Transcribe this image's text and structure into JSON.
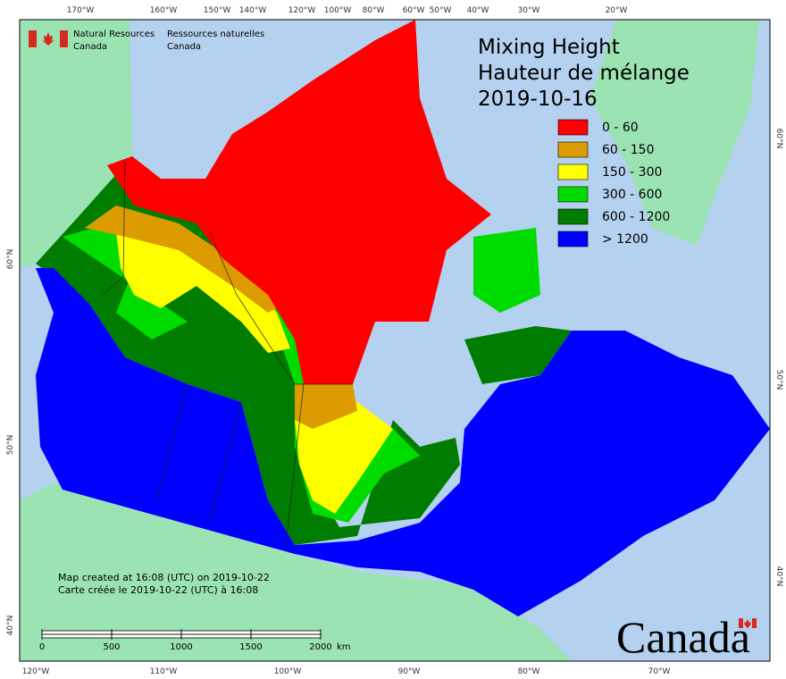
{
  "header": {
    "agency_en": [
      "Natural Resources",
      "Canada"
    ],
    "agency_fr": [
      "Ressources naturelles",
      "Canada"
    ]
  },
  "title": [
    "Mixing Height",
    "Hauteur de mélange",
    "2019-10-16"
  ],
  "legend": [
    {
      "label": "0 - 60",
      "color": "#ff0000"
    },
    {
      "label": "60 - 150",
      "color": "#dc9b00"
    },
    {
      "label": "150 - 300",
      "color": "#ffff00"
    },
    {
      "label": "300 - 600",
      "color": "#00dc00"
    },
    {
      "label": "600 - 1200",
      "color": "#007d00"
    },
    {
      "label": "> 1200",
      "color": "#0000ff"
    }
  ],
  "graticule": {
    "top": [
      "170°W",
      "160°W",
      "150°W",
      "140°W",
      "120°W",
      "100°W",
      "80°W",
      "60°W",
      "50°W",
      "40°W",
      "30°W",
      "20°W"
    ],
    "bottom": [
      "120°W",
      "110°W",
      "100°W",
      "90°W",
      "80°W",
      "70°W"
    ],
    "left": [
      "60°N",
      "50°N",
      "40°N"
    ],
    "right": [
      "60°N",
      "50°N",
      "40°N"
    ]
  },
  "credits": [
    "Map created at 16:08 (UTC) on 2019-10-22",
    "Carte créée le 2019-10-22 (UTC) à 16:08"
  ],
  "scale_bar": {
    "ticks": [
      0,
      500,
      1000,
      1500,
      2000
    ],
    "unit": "km"
  },
  "wordmark": "Canada"
}
